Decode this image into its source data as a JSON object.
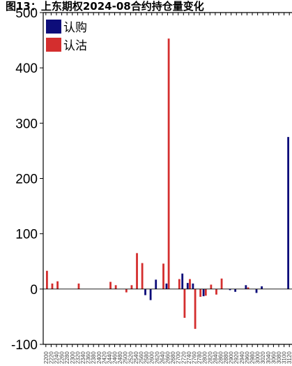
{
  "chart_data": {
    "type": "bar",
    "title": "图13：上东期权2024-08合约持仓量变化",
    "xlabel": "",
    "ylabel": "",
    "ylim": [
      -100,
      500
    ],
    "yticks": [
      -100,
      0,
      100,
      200,
      300,
      400,
      500
    ],
    "grid": false,
    "legend_position": "top-left",
    "categories": [
      "2200",
      "2220",
      "2240",
      "2260",
      "2280",
      "2300",
      "2320",
      "2340",
      "2360",
      "2380",
      "2400",
      "2420",
      "2440",
      "2460",
      "2480",
      "2500",
      "2520",
      "2540",
      "2560",
      "2580",
      "2600",
      "2620",
      "2640",
      "2660",
      "2680",
      "2700",
      "2720",
      "2740",
      "2760",
      "2780",
      "2800",
      "2820",
      "2840",
      "2860",
      "2880",
      "2900",
      "2920",
      "2940",
      "2960",
      "2980",
      "3000",
      "3020",
      "3040",
      "3060",
      "3080",
      "3100",
      "3120"
    ],
    "series": [
      {
        "name": "认购",
        "color": "#0d0d7a",
        "values": [
          0,
          0,
          0,
          0,
          0,
          0,
          0,
          0,
          0,
          0,
          0,
          0,
          0,
          0,
          0,
          0,
          0,
          0,
          0,
          -11,
          -20,
          17,
          0,
          10,
          0,
          0,
          28,
          11,
          10,
          0,
          -13,
          0,
          0,
          0,
          0,
          -2,
          -5,
          0,
          7,
          0,
          -7,
          5,
          0,
          0,
          0,
          0,
          275
        ]
      },
      {
        "name": "认沽",
        "color": "#d42e2e",
        "values": [
          33,
          10,
          14,
          0,
          0,
          0,
          10,
          0,
          0,
          0,
          0,
          0,
          13,
          7,
          0,
          -6,
          7,
          65,
          47,
          0,
          0,
          0,
          46,
          453,
          0,
          18,
          -52,
          18,
          -72,
          -14,
          -12,
          8,
          -10,
          19,
          0,
          0,
          0,
          0,
          3,
          0,
          0,
          0,
          0,
          0,
          0,
          0,
          0
        ]
      }
    ]
  }
}
